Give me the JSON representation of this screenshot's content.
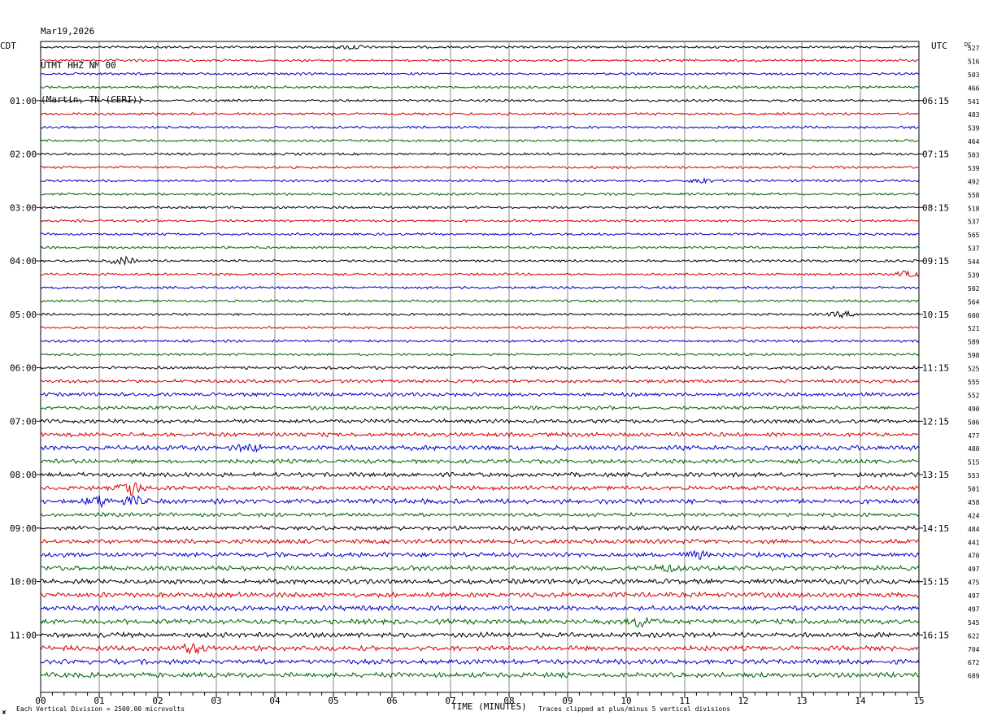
{
  "header": {
    "date": "Mar19,2026",
    "station": "UTMT HHZ NM 00",
    "location": "(Martin, TN (CERI))"
  },
  "left_tz": "CDT",
  "right_tz": "UTC",
  "dc_label": "DC",
  "footer": {
    "scale_note": "Each Vertical Division = 2500.00 microvolts",
    "x_title": "TIME (MINUTES)",
    "clip_note": "Traces clipped at plus/minus 5 vertical divisions",
    "corner_mark": "✘"
  },
  "colors": {
    "trace_cycle": [
      "#000000",
      "#d40000",
      "#0000cc",
      "#006600"
    ],
    "grid": "#888888"
  },
  "chart_data": {
    "type": "line",
    "title": "UTMT HHZ NM 00",
    "xlabel": "TIME (MINUTES)",
    "xlim": [
      0,
      15
    ],
    "x_ticks": [
      "00",
      "01",
      "02",
      "03",
      "04",
      "05",
      "06",
      "07",
      "08",
      "09",
      "10",
      "11",
      "12",
      "13",
      "14",
      "15"
    ],
    "left_hour_labels": [
      {
        "row": 4,
        "label": "01:00"
      },
      {
        "row": 8,
        "label": "02:00"
      },
      {
        "row": 12,
        "label": "03:00"
      },
      {
        "row": 16,
        "label": "04:00"
      },
      {
        "row": 20,
        "label": "05:00"
      },
      {
        "row": 24,
        "label": "06:00"
      },
      {
        "row": 28,
        "label": "07:00"
      },
      {
        "row": 32,
        "label": "08:00"
      },
      {
        "row": 36,
        "label": "09:00"
      },
      {
        "row": 40,
        "label": "10:00"
      },
      {
        "row": 44,
        "label": "11:00"
      }
    ],
    "right_hour_labels": [
      {
        "row": 4,
        "label": "06:15"
      },
      {
        "row": 8,
        "label": "07:15"
      },
      {
        "row": 12,
        "label": "08:15"
      },
      {
        "row": 16,
        "label": "09:15"
      },
      {
        "row": 20,
        "label": "10:15"
      },
      {
        "row": 24,
        "label": "11:15"
      },
      {
        "row": 28,
        "label": "12:15"
      },
      {
        "row": 32,
        "label": "13:15"
      },
      {
        "row": 36,
        "label": "14:15"
      },
      {
        "row": 40,
        "label": "15:15"
      },
      {
        "row": 44,
        "label": "16:15"
      }
    ],
    "dc_offsets": [
      527,
      516,
      503,
      466,
      541,
      483,
      539,
      464,
      503,
      539,
      492,
      558,
      518,
      537,
      565,
      537,
      544,
      539,
      502,
      564,
      600,
      521,
      589,
      598,
      525,
      555,
      552,
      490,
      506,
      477,
      480,
      515,
      553,
      501,
      458,
      424,
      484,
      441,
      470,
      497,
      475,
      497,
      497,
      545,
      622,
      704,
      672,
      689
    ],
    "noise_level": [
      1,
      1,
      1,
      1,
      1,
      1,
      1,
      1,
      1,
      1,
      1,
      1,
      1,
      1,
      1,
      1,
      1,
      1,
      1,
      1,
      1,
      1,
      1,
      1,
      1.3,
      1.4,
      1.5,
      1.5,
      1.6,
      1.7,
      2,
      1.7,
      1.8,
      1.8,
      2,
      1.6,
      1.7,
      1.8,
      1.9,
      2,
      2,
      2,
      2,
      2,
      2,
      2,
      2,
      2
    ],
    "events": [
      {
        "row": 0,
        "minute": 5.3,
        "amp": 2
      },
      {
        "row": 10,
        "minute": 11.3,
        "amp": 2
      },
      {
        "row": 16,
        "minute": 1.4,
        "amp": 3
      },
      {
        "row": 17,
        "minute": 14.8,
        "amp": 2
      },
      {
        "row": 20,
        "minute": 13.7,
        "amp": 2
      },
      {
        "row": 30,
        "minute": 3.6,
        "amp": 2.5
      },
      {
        "row": 33,
        "minute": 1.55,
        "amp": 6
      },
      {
        "row": 34,
        "minute": 1.0,
        "amp": 4
      },
      {
        "row": 34,
        "minute": 1.6,
        "amp": 3
      },
      {
        "row": 38,
        "minute": 11.2,
        "amp": 2.5
      },
      {
        "row": 39,
        "minute": 10.7,
        "amp": 2.5
      },
      {
        "row": 43,
        "minute": 10.25,
        "amp": 4
      },
      {
        "row": 45,
        "minute": 2.6,
        "amp": 4
      }
    ]
  }
}
